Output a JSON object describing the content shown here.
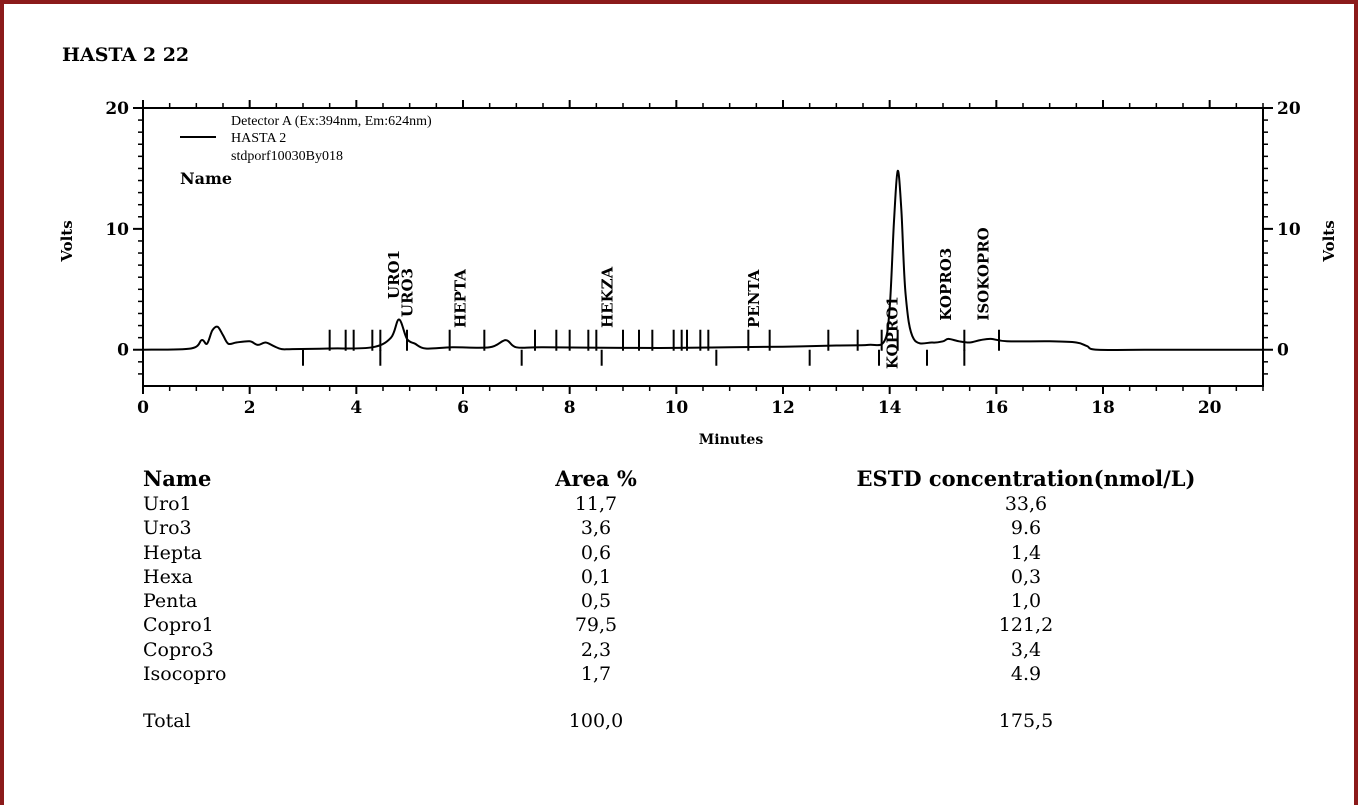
{
  "title": "HASTA 2  22",
  "chart_data": {
    "type": "line",
    "xlabel": "Minutes",
    "ylabel": "Volts",
    "ylabel_right": "Volts",
    "xlim": [
      0,
      21
    ],
    "ylim": [
      -3,
      20
    ],
    "x_ticks": [
      0,
      2,
      4,
      6,
      8,
      10,
      12,
      14,
      16,
      18,
      20
    ],
    "y_ticks": [
      0,
      10,
      20
    ],
    "legend": {
      "position": "top-left",
      "lines": [
        "Detector A (Ex:394nm, Em:624nm)",
        "HASTA 2",
        "stdporf10030By018"
      ],
      "title": "Name"
    },
    "series": [
      {
        "name": "HASTA 2",
        "x": [
          0,
          0.9,
          1.1,
          1.2,
          1.3,
          1.4,
          1.5,
          1.6,
          1.75,
          2.0,
          2.15,
          2.3,
          2.45,
          2.6,
          2.8,
          3.5,
          4.3,
          4.65,
          4.8,
          4.95,
          5.1,
          5.3,
          5.8,
          6.5,
          6.8,
          7.0,
          7.5,
          9,
          10,
          11,
          12,
          13,
          13.6,
          13.9,
          14.0,
          14.08,
          14.15,
          14.22,
          14.3,
          14.45,
          14.8,
          15.0,
          15.1,
          15.3,
          15.5,
          15.7,
          15.9,
          16.2,
          17.0,
          17.5,
          17.7,
          17.9,
          19,
          21
        ],
        "y": [
          0,
          0.1,
          0.8,
          0.5,
          1.6,
          1.9,
          1.2,
          0.5,
          0.6,
          0.7,
          0.4,
          0.6,
          0.3,
          0.05,
          0.05,
          0.1,
          0.2,
          1.0,
          2.5,
          0.9,
          0.5,
          0.1,
          0.2,
          0.2,
          0.8,
          0.2,
          0.2,
          0.15,
          0.15,
          0.2,
          0.25,
          0.35,
          0.4,
          0.7,
          3.5,
          10.5,
          14.8,
          11.5,
          4.5,
          0.9,
          0.6,
          0.7,
          0.9,
          0.7,
          0.6,
          0.8,
          0.9,
          0.7,
          0.7,
          0.6,
          0.3,
          0.0,
          0.0,
          0.0
        ]
      }
    ],
    "peak_labels": [
      {
        "text": "URO1",
        "x": 4.8,
        "y": 4.2
      },
      {
        "text": "URO3",
        "x": 5.05,
        "y": 2.7
      },
      {
        "text": "HEPTA",
        "x": 6.05,
        "y": 1.8
      },
      {
        "text": "HEKZA",
        "x": 8.8,
        "y": 1.8
      },
      {
        "text": "PENTA",
        "x": 11.55,
        "y": 1.8
      },
      {
        "text": "KOPRO1",
        "x": 14.15,
        "y": -1.6
      },
      {
        "text": "KOPRO3",
        "x": 15.15,
        "y": 2.4
      },
      {
        "text": "ISOKOPRO",
        "x": 15.85,
        "y": 2.4
      }
    ],
    "markers_up": [
      3.5,
      3.8,
      3.95,
      4.3,
      4.45,
      4.95,
      5.75,
      6.4,
      7.35,
      7.75,
      8.0,
      8.35,
      8.5,
      9.0,
      9.3,
      9.55,
      9.95,
      10.1,
      10.2,
      10.45,
      10.6,
      11.35,
      11.75,
      12.85,
      13.4,
      13.85,
      14.15,
      15.4,
      16.05
    ],
    "markers_down": [
      3.0,
      4.45,
      7.1,
      8.6,
      10.75,
      12.5,
      13.8,
      14.7,
      15.4
    ]
  },
  "results_table": {
    "headers": [
      "Name",
      "Area %",
      "ESTD concentration(nmol/L)"
    ],
    "rows": [
      [
        "Uro1",
        "11,7",
        "33,6"
      ],
      [
        "Uro3",
        "3,6",
        "9.6"
      ],
      [
        "Hepta",
        "0,6",
        "1,4"
      ],
      [
        "Hexa",
        "0,1",
        "0,3"
      ],
      [
        "Penta",
        "0,5",
        "1,0"
      ],
      [
        "Copro1",
        "79,5",
        "121,2"
      ],
      [
        "Copro3",
        "2,3",
        "3,4"
      ],
      [
        "Isocopro",
        "1,7",
        "4.9"
      ]
    ],
    "total": [
      "Total",
      "100,0",
      "175,5"
    ]
  }
}
